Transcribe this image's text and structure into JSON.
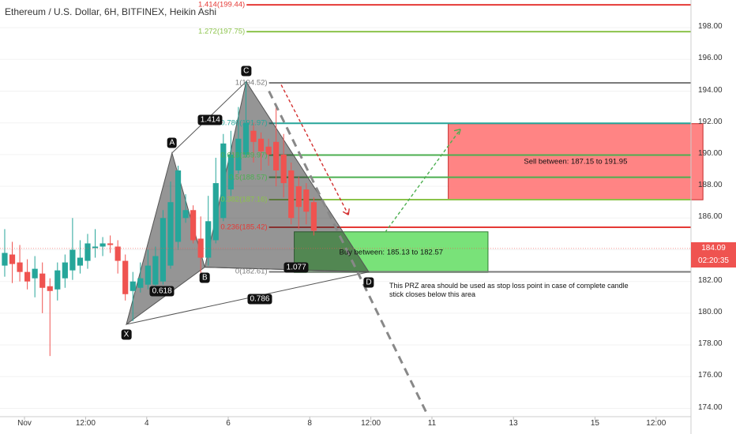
{
  "title": "Ethereum / U.S. Dollar, 6H, BITFINEX, Heikin Ashi",
  "colors": {
    "bull": "#26a69a",
    "bear": "#ef5350",
    "pattern": "#555555",
    "sell_box": "#ff7a7a",
    "buy_box": "#6ee06e"
  },
  "chart_data": {
    "type": "candlestick",
    "price_axis": {
      "labels": [
        "174.00",
        "176.00",
        "178.00",
        "180.00",
        "182.00",
        "184.00",
        "186.00",
        "188.00",
        "190.00",
        "192.00",
        "194.00",
        "196.00",
        "198.00"
      ],
      "range": [
        173.2,
        199.9
      ]
    },
    "time_axis": {
      "labels": [
        {
          "text": "Nov",
          "x": 0.0
        },
        {
          "text": "12:00",
          "x": 3.0
        },
        {
          "text": "4",
          "x": 6.0
        },
        {
          "text": "6",
          "x": 10.0
        },
        {
          "text": "8",
          "x": 14.0
        },
        {
          "text": "12:00",
          "x": 17.0
        },
        {
          "text": "11",
          "x": 20.0
        },
        {
          "text": "13",
          "x": 24.0
        },
        {
          "text": "15",
          "x": 28.0
        },
        {
          "text": "12:00",
          "x": 31.0
        }
      ]
    },
    "current_price": "184.09",
    "countdown": "02:20:35",
    "candles": [
      {
        "x": -0.97,
        "o": 183.0,
        "h": 185.3,
        "l": 182.3,
        "c": 183.8
      },
      {
        "x": -0.6,
        "o": 183.7,
        "h": 184.5,
        "l": 181.9,
        "c": 183.1
      },
      {
        "x": -0.23,
        "o": 183.2,
        "h": 184.3,
        "l": 182.0,
        "c": 182.6
      },
      {
        "x": 0.14,
        "o": 182.6,
        "h": 183.4,
        "l": 181.5,
        "c": 182.0
      },
      {
        "x": 0.51,
        "o": 182.2,
        "h": 183.6,
        "l": 181.0,
        "c": 182.8
      },
      {
        "x": 0.88,
        "o": 182.5,
        "h": 183.2,
        "l": 180.0,
        "c": 181.6
      },
      {
        "x": 1.25,
        "o": 181.7,
        "h": 182.2,
        "l": 177.3,
        "c": 181.4
      },
      {
        "x": 1.62,
        "o": 181.5,
        "h": 183.2,
        "l": 180.8,
        "c": 182.7
      },
      {
        "x": 1.99,
        "o": 182.2,
        "h": 183.7,
        "l": 181.6,
        "c": 183.2
      },
      {
        "x": 2.36,
        "o": 182.7,
        "h": 186.0,
        "l": 182.1,
        "c": 184.0
      },
      {
        "x": 2.73,
        "o": 183.0,
        "h": 184.6,
        "l": 182.5,
        "c": 183.5
      },
      {
        "x": 3.1,
        "o": 183.3,
        "h": 185.0,
        "l": 182.8,
        "c": 184.4
      },
      {
        "x": 3.47,
        "o": 184.1,
        "h": 185.3,
        "l": 183.5,
        "c": 184.2
      },
      {
        "x": 3.84,
        "o": 184.2,
        "h": 184.8,
        "l": 183.6,
        "c": 184.4
      },
      {
        "x": 4.21,
        "o": 184.4,
        "h": 184.9,
        "l": 183.8,
        "c": 184.3
      },
      {
        "x": 4.58,
        "o": 184.2,
        "h": 184.6,
        "l": 182.5,
        "c": 183.3
      },
      {
        "x": 4.95,
        "o": 183.3,
        "h": 183.7,
        "l": 180.8,
        "c": 181.2
      },
      {
        "x": 5.32,
        "o": 181.4,
        "h": 182.6,
        "l": 179.5,
        "c": 182.0
      },
      {
        "x": 5.69,
        "o": 181.6,
        "h": 183.2,
        "l": 181.3,
        "c": 182.2
      },
      {
        "x": 6.06,
        "o": 181.8,
        "h": 184.0,
        "l": 181.5,
        "c": 183.0
      },
      {
        "x": 6.43,
        "o": 181.8,
        "h": 184.2,
        "l": 181.5,
        "c": 183.6
      },
      {
        "x": 6.8,
        "o": 182.0,
        "h": 186.5,
        "l": 181.8,
        "c": 186.0
      },
      {
        "x": 7.17,
        "o": 183.0,
        "h": 188.3,
        "l": 182.8,
        "c": 187.0
      },
      {
        "x": 7.54,
        "o": 184.5,
        "h": 189.3,
        "l": 184.0,
        "c": 189.0
      },
      {
        "x": 7.91,
        "o": 186.0,
        "h": 187.5,
        "l": 185.7,
        "c": 186.5
      },
      {
        "x": 8.28,
        "o": 186.5,
        "h": 186.8,
        "l": 184.4,
        "c": 184.6
      },
      {
        "x": 8.65,
        "o": 184.7,
        "h": 186.1,
        "l": 182.4,
        "c": 183.5
      },
      {
        "x": 9.02,
        "o": 183.5,
        "h": 187.4,
        "l": 183.0,
        "c": 185.8
      },
      {
        "x": 9.39,
        "o": 184.6,
        "h": 189.8,
        "l": 184.4,
        "c": 188.2
      },
      {
        "x": 9.76,
        "o": 186.0,
        "h": 191.3,
        "l": 185.8,
        "c": 190.7
      },
      {
        "x": 10.13,
        "o": 187.8,
        "h": 191.5,
        "l": 187.4,
        "c": 190.0
      },
      {
        "x": 10.5,
        "o": 189.0,
        "h": 193.0,
        "l": 188.8,
        "c": 191.0
      },
      {
        "x": 10.87,
        "o": 190.0,
        "h": 194.6,
        "l": 189.8,
        "c": 192.0
      },
      {
        "x": 11.24,
        "o": 191.5,
        "h": 192.0,
        "l": 189.5,
        "c": 190.8
      },
      {
        "x": 11.61,
        "o": 191.0,
        "h": 191.4,
        "l": 189.0,
        "c": 190.2
      },
      {
        "x": 11.98,
        "o": 190.5,
        "h": 191.0,
        "l": 189.3,
        "c": 190.0
      },
      {
        "x": 12.35,
        "o": 190.8,
        "h": 193.0,
        "l": 188.0,
        "c": 189.0
      },
      {
        "x": 12.72,
        "o": 190.0,
        "h": 191.3,
        "l": 187.3,
        "c": 188.2
      },
      {
        "x": 13.09,
        "o": 189.0,
        "h": 189.5,
        "l": 185.6,
        "c": 186.0
      },
      {
        "x": 13.46,
        "o": 188.0,
        "h": 188.6,
        "l": 185.3,
        "c": 186.7
      },
      {
        "x": 13.83,
        "o": 187.8,
        "h": 188.2,
        "l": 185.6,
        "c": 186.4
      },
      {
        "x": 14.2,
        "o": 187.0,
        "h": 187.3,
        "l": 184.9,
        "c": 185.2
      }
    ],
    "pattern": {
      "points": [
        {
          "label": "X",
          "x": 5.0,
          "y": 179.3
        },
        {
          "label": "A",
          "x": 7.24,
          "y": 190.1
        },
        {
          "label": "B",
          "x": 8.85,
          "y": 182.9
        },
        {
          "label": "C",
          "x": 10.88,
          "y": 194.6
        },
        {
          "label": "D",
          "x": 16.9,
          "y": 182.6
        }
      ],
      "ratios": [
        {
          "text": "0.618",
          "x": 6.75,
          "y": 181.4
        },
        {
          "text": "1.414",
          "x": 9.12,
          "y": 192.2
        },
        {
          "text": "0.786",
          "x": 11.55,
          "y": 180.9
        },
        {
          "text": "1.077",
          "x": 13.34,
          "y": 182.9
        }
      ]
    },
    "fib_levels": [
      {
        "label": "1.414(199.44)",
        "value": 199.44,
        "color": "#e53935",
        "x_start": 10.9
      },
      {
        "label": "1.272(197.75)",
        "value": 197.75,
        "color": "#8bc34a",
        "x_start": 10.9
      },
      {
        "label": "1(194.52)",
        "value": 194.52,
        "color": "#7a7a7a",
        "x_start": 12.0
      },
      {
        "label": "0.786(191.97)",
        "value": 191.97,
        "color": "#26a69a",
        "x_start": 12.0
      },
      {
        "label": "0.618(189.97)",
        "value": 189.97,
        "color": "#4caf50",
        "x_start": 12.0
      },
      {
        "label": "0.5(188.57)",
        "value": 188.57,
        "color": "#4caf50",
        "x_start": 12.0
      },
      {
        "label": "0.382(187.16)",
        "value": 187.16,
        "color": "#8bc34a",
        "x_start": 12.0
      },
      {
        "label": "0.236(185.42)",
        "value": 185.42,
        "color": "#e53935",
        "x_start": 12.0
      },
      {
        "label": "0(182.61)",
        "value": 182.61,
        "color": "#7a7a7a",
        "x_start": 12.0
      }
    ],
    "zones": [
      {
        "label": "Sell between: 187.15 to 191.95",
        "low": 187.15,
        "high": 191.95,
        "x_start": 20.8,
        "x_end": 33.3,
        "color": "#ff7a7a"
      },
      {
        "label": "Buy between: 185.13 to 182.57",
        "low": 182.57,
        "high": 185.13,
        "x_start": 13.24,
        "x_end": 22.75,
        "color": "#6ee06e"
      }
    ],
    "annotation": "This PRZ area should be used as stop loss point in case of complete candle stick closes below this area"
  }
}
